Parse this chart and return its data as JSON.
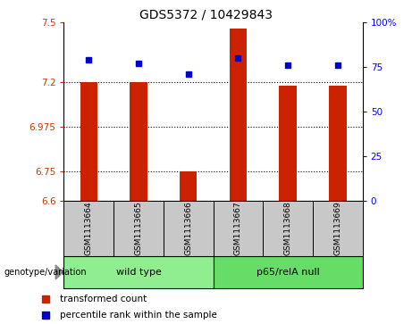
{
  "title": "GDS5372 / 10429843",
  "samples": [
    "GSM1113664",
    "GSM1113665",
    "GSM1113666",
    "GSM1113667",
    "GSM1113668",
    "GSM1113669"
  ],
  "red_values": [
    7.2,
    7.2,
    6.75,
    7.47,
    7.18,
    7.18
  ],
  "blue_values": [
    79,
    77,
    71,
    80,
    76,
    76
  ],
  "ylim_left": [
    6.6,
    7.5
  ],
  "ylim_right": [
    0,
    100
  ],
  "yticks_left": [
    6.6,
    6.75,
    6.975,
    7.2,
    7.5
  ],
  "ytick_labels_left": [
    "6.6",
    "6.75",
    "6.975",
    "7.2",
    "7.5"
  ],
  "yticks_right": [
    0,
    25,
    50,
    75,
    100
  ],
  "ytick_labels_right": [
    "0",
    "25",
    "50",
    "75",
    "100%"
  ],
  "hlines": [
    7.2,
    6.975,
    6.75
  ],
  "group_configs": [
    {
      "start": 0,
      "end": 2,
      "label": "wild type",
      "color": "#90EE90"
    },
    {
      "start": 3,
      "end": 5,
      "label": "p65/relA null",
      "color": "#66DD66"
    }
  ],
  "genotype_label": "genotype/variation",
  "legend_red": "transformed count",
  "legend_blue": "percentile rank within the sample",
  "bar_color": "#CC2200",
  "dot_color": "#0000CC",
  "bar_width": 0.35,
  "base_value": 6.6,
  "bg_color": "#ffffff",
  "sample_box_color": "#c8c8c8",
  "title_fontsize": 10,
  "tick_fontsize": 7.5,
  "label_fontsize": 7.5,
  "legend_fontsize": 7.5
}
